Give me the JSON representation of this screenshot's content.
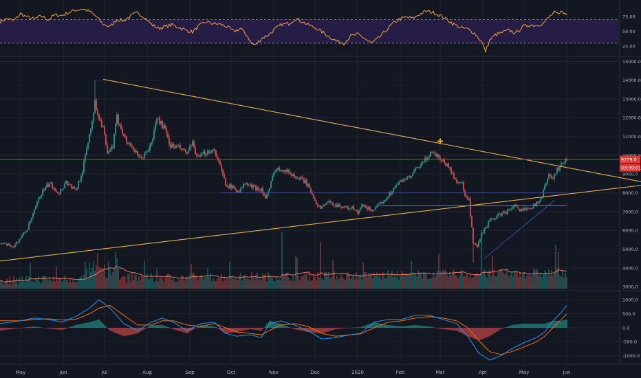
{
  "colors": {
    "background": "#131722",
    "grid": "#1f2433",
    "up": "#26a69a",
    "down": "#ef5350",
    "trendline": "#e8b04b",
    "rsi_line": "#f7a13b",
    "rsi_band": "#2a1f4d",
    "macd_line": "#2196f3",
    "signal_line": "#ff6d00",
    "vol_ma": "#e57a5a",
    "h_red": "#e53935",
    "h_blue": "#3f51b5",
    "h_green": "#26a69a",
    "marker": "#f5a623"
  },
  "icons": {
    "marker": "plus-marker-icon"
  },
  "chart_data": [
    {
      "name": "rsi",
      "type": "line",
      "ylim": [
        10,
        95
      ],
      "yticks": [
        "75.00",
        "50.00",
        "25.00"
      ],
      "ytick_values": [
        75,
        50,
        25
      ],
      "band": [
        30,
        70
      ],
      "points": [
        [
          0,
          66
        ],
        [
          5,
          72
        ],
        [
          10,
          68
        ],
        [
          15,
          80
        ],
        [
          20,
          74
        ],
        [
          25,
          71
        ],
        [
          30,
          76
        ],
        [
          35,
          70
        ],
        [
          40,
          78
        ],
        [
          45,
          77
        ],
        [
          50,
          82
        ],
        [
          55,
          86
        ],
        [
          60,
          88
        ],
        [
          65,
          84
        ],
        [
          70,
          75
        ],
        [
          75,
          62
        ],
        [
          80,
          58
        ],
        [
          85,
          70
        ],
        [
          90,
          68
        ],
        [
          95,
          76
        ],
        [
          100,
          82
        ],
        [
          105,
          74
        ],
        [
          110,
          62
        ],
        [
          115,
          55
        ],
        [
          120,
          58
        ],
        [
          125,
          61
        ],
        [
          130,
          57
        ],
        [
          135,
          52
        ],
        [
          140,
          49
        ],
        [
          145,
          60
        ],
        [
          150,
          66
        ],
        [
          155,
          63
        ],
        [
          160,
          62
        ],
        [
          165,
          58
        ],
        [
          170,
          50
        ],
        [
          175,
          55
        ],
        [
          180,
          42
        ],
        [
          183,
          29
        ],
        [
          186,
          27
        ],
        [
          190,
          38
        ],
        [
          195,
          44
        ],
        [
          200,
          54
        ],
        [
          205,
          62
        ],
        [
          210,
          63
        ],
        [
          215,
          72
        ],
        [
          220,
          66
        ],
        [
          225,
          60
        ],
        [
          230,
          55
        ],
        [
          235,
          48
        ],
        [
          240,
          40
        ],
        [
          245,
          33
        ],
        [
          250,
          30
        ],
        [
          255,
          42
        ],
        [
          260,
          45
        ],
        [
          265,
          38
        ],
        [
          270,
          30
        ],
        [
          275,
          38
        ],
        [
          280,
          50
        ],
        [
          285,
          62
        ],
        [
          290,
          70
        ],
        [
          295,
          74
        ],
        [
          300,
          72
        ],
        [
          305,
          79
        ],
        [
          310,
          84
        ],
        [
          315,
          82
        ],
        [
          320,
          77
        ],
        [
          325,
          70
        ],
        [
          330,
          62
        ],
        [
          335,
          56
        ],
        [
          340,
          54
        ],
        [
          345,
          47
        ],
        [
          350,
          33
        ],
        [
          353,
          16
        ],
        [
          356,
          35
        ],
        [
          360,
          44
        ],
        [
          365,
          48
        ],
        [
          370,
          52
        ],
        [
          375,
          47
        ],
        [
          380,
          58
        ],
        [
          385,
          61
        ],
        [
          390,
          60
        ],
        [
          395,
          64
        ],
        [
          400,
          76
        ],
        [
          403,
          82
        ],
        [
          406,
          78
        ],
        [
          409,
          85
        ],
        [
          412,
          77
        ]
      ]
    },
    {
      "name": "price",
      "type": "candlestick",
      "xlim": [
        0,
        466
      ],
      "ylim": [
        2900,
        15200
      ],
      "yticks": [
        "15000.0",
        "14000.0",
        "13000.0",
        "12000.0",
        "11000.0",
        "10000.0",
        "9000.0",
        "8000.0",
        "7000.0",
        "6000.0",
        "5000.0",
        "4000.0",
        "3000.0"
      ],
      "ytick_values": [
        15000,
        14000,
        13000,
        12000,
        11000,
        10000,
        9000,
        8000,
        7000,
        6000,
        5000,
        4000,
        3000
      ],
      "xticks": [
        "May",
        "Jun",
        "Jul",
        "Aug",
        "Sep",
        "Oct",
        "Nov",
        "Dec",
        "2020",
        "Feb",
        "Mar",
        "Apr",
        "May",
        "Jun"
      ],
      "xtick_days": [
        15,
        46,
        76,
        107,
        138,
        168,
        199,
        229,
        260,
        291,
        320,
        351,
        381,
        412
      ],
      "anchors": [
        [
          0,
          5300
        ],
        [
          10,
          5150
        ],
        [
          20,
          6100
        ],
        [
          30,
          8000
        ],
        [
          36,
          8500
        ],
        [
          43,
          8000
        ],
        [
          48,
          8600
        ],
        [
          55,
          8100
        ],
        [
          60,
          9200
        ],
        [
          66,
          11500
        ],
        [
          69,
          12800
        ],
        [
          72,
          12000
        ],
        [
          75,
          11500
        ],
        [
          78,
          10000
        ],
        [
          82,
          10500
        ],
        [
          85,
          12000
        ],
        [
          88,
          11500
        ],
        [
          92,
          10700
        ],
        [
          96,
          10500
        ],
        [
          101,
          9800
        ],
        [
          105,
          10000
        ],
        [
          110,
          10600
        ],
        [
          114,
          12000
        ],
        [
          119,
          11500
        ],
        [
          124,
          10500
        ],
        [
          130,
          10400
        ],
        [
          136,
          10100
        ],
        [
          140,
          10600
        ],
        [
          144,
          9800
        ],
        [
          150,
          10200
        ],
        [
          156,
          10300
        ],
        [
          160,
          9400
        ],
        [
          164,
          8500
        ],
        [
          168,
          8300
        ],
        [
          174,
          8100
        ],
        [
          178,
          8500
        ],
        [
          184,
          8300
        ],
        [
          190,
          8200
        ],
        [
          193,
          7700
        ],
        [
          196,
          8200
        ],
        [
          199,
          9200
        ],
        [
          205,
          9300
        ],
        [
          210,
          9100
        ],
        [
          216,
          8800
        ],
        [
          222,
          8600
        ],
        [
          228,
          7800
        ],
        [
          232,
          7200
        ],
        [
          238,
          7500
        ],
        [
          242,
          7400
        ],
        [
          248,
          7300
        ],
        [
          252,
          7200
        ],
        [
          256,
          7200
        ],
        [
          260,
          6900
        ],
        [
          263,
          7300
        ],
        [
          267,
          7200
        ],
        [
          270,
          7100
        ],
        [
          274,
          7200
        ],
        [
          280,
          7700
        ],
        [
          286,
          8200
        ],
        [
          292,
          8700
        ],
        [
          298,
          8800
        ],
        [
          303,
          9300
        ],
        [
          306,
          9500
        ],
        [
          310,
          9800
        ],
        [
          313,
          10200
        ],
        [
          318,
          10000
        ],
        [
          322,
          9700
        ],
        [
          326,
          9400
        ],
        [
          331,
          8700
        ],
        [
          336,
          8500
        ],
        [
          338,
          7800
        ],
        [
          341,
          7600
        ],
        [
          344,
          5300
        ],
        [
          347,
          5100
        ],
        [
          350,
          5800
        ],
        [
          356,
          6500
        ],
        [
          362,
          6800
        ],
        [
          368,
          7000
        ],
        [
          374,
          7300
        ],
        [
          378,
          7000
        ],
        [
          382,
          7200
        ],
        [
          388,
          7300
        ],
        [
          394,
          7800
        ],
        [
          398,
          8900
        ],
        [
          402,
          8800
        ],
        [
          405,
          9200
        ],
        [
          409,
          9700
        ]
      ],
      "trendlines": [
        {
          "x": [
            75,
            466
          ],
          "y": [
            14050,
            8600
          ]
        },
        {
          "x": [
            0,
            466
          ],
          "y": [
            4370,
            8400
          ]
        }
      ],
      "hlines": [
        {
          "y": 9779,
          "color": "red"
        },
        {
          "y": 8000,
          "x": [
            160,
            412
          ],
          "color": "blue"
        },
        {
          "y": 7320,
          "x": [
            276,
            412
          ],
          "color": "green"
        }
      ],
      "diagonal": {
        "x": [
          352,
          403
        ],
        "y": [
          4500,
          7600
        ]
      },
      "marker_point": [
        320,
        10750
      ],
      "price_label": "9779.0",
      "countdown_label": "03:39:01"
    },
    {
      "name": "volume",
      "type": "bar",
      "note_ma": "moving average overlay"
    },
    {
      "name": "macd",
      "type": "line",
      "ylim": [
        -1250,
        1250
      ],
      "yticks": [
        "1000.0",
        "500.0",
        "0.0",
        "-500.0",
        "-1000.0"
      ],
      "ytick_values": [
        1000,
        500,
        0,
        -500,
        -1000
      ],
      "macd_points": [
        [
          0,
          150
        ],
        [
          15,
          250
        ],
        [
          25,
          350
        ],
        [
          35,
          300
        ],
        [
          45,
          200
        ],
        [
          55,
          400
        ],
        [
          65,
          700
        ],
        [
          72,
          1000
        ],
        [
          80,
          700
        ],
        [
          90,
          150
        ],
        [
          100,
          -100
        ],
        [
          110,
          200
        ],
        [
          118,
          350
        ],
        [
          126,
          200
        ],
        [
          136,
          -100
        ],
        [
          146,
          150
        ],
        [
          156,
          200
        ],
        [
          164,
          -200
        ],
        [
          172,
          -300
        ],
        [
          182,
          -250
        ],
        [
          190,
          -350
        ],
        [
          196,
          150
        ],
        [
          204,
          250
        ],
        [
          214,
          100
        ],
        [
          224,
          -100
        ],
        [
          234,
          -400
        ],
        [
          244,
          -350
        ],
        [
          254,
          -250
        ],
        [
          262,
          -200
        ],
        [
          272,
          200
        ],
        [
          282,
          300
        ],
        [
          292,
          300
        ],
        [
          302,
          450
        ],
        [
          312,
          450
        ],
        [
          322,
          300
        ],
        [
          332,
          150
        ],
        [
          340,
          -300
        ],
        [
          348,
          -900
        ],
        [
          356,
          -1150
        ],
        [
          364,
          -1000
        ],
        [
          372,
          -750
        ],
        [
          380,
          -550
        ],
        [
          390,
          -350
        ],
        [
          396,
          -150
        ],
        [
          402,
          250
        ],
        [
          408,
          550
        ],
        [
          412,
          800
        ]
      ],
      "signal_points": [
        [
          0,
          250
        ],
        [
          15,
          250
        ],
        [
          25,
          300
        ],
        [
          35,
          320
        ],
        [
          45,
          280
        ],
        [
          55,
          300
        ],
        [
          65,
          500
        ],
        [
          72,
          700
        ],
        [
          80,
          800
        ],
        [
          90,
          450
        ],
        [
          100,
          100
        ],
        [
          110,
          100
        ],
        [
          118,
          250
        ],
        [
          126,
          250
        ],
        [
          136,
          100
        ],
        [
          146,
          50
        ],
        [
          156,
          150
        ],
        [
          164,
          0
        ],
        [
          172,
          -150
        ],
        [
          182,
          -200
        ],
        [
          190,
          -250
        ],
        [
          196,
          -100
        ],
        [
          204,
          100
        ],
        [
          214,
          150
        ],
        [
          224,
          50
        ],
        [
          234,
          -200
        ],
        [
          244,
          -300
        ],
        [
          254,
          -250
        ],
        [
          262,
          -220
        ],
        [
          272,
          0
        ],
        [
          282,
          200
        ],
        [
          292,
          250
        ],
        [
          302,
          350
        ],
        [
          312,
          400
        ],
        [
          322,
          350
        ],
        [
          332,
          250
        ],
        [
          340,
          0
        ],
        [
          348,
          -450
        ],
        [
          356,
          -850
        ],
        [
          364,
          -950
        ],
        [
          372,
          -850
        ],
        [
          380,
          -700
        ],
        [
          390,
          -500
        ],
        [
          396,
          -300
        ],
        [
          402,
          0
        ],
        [
          408,
          300
        ],
        [
          412,
          500
        ]
      ]
    }
  ]
}
